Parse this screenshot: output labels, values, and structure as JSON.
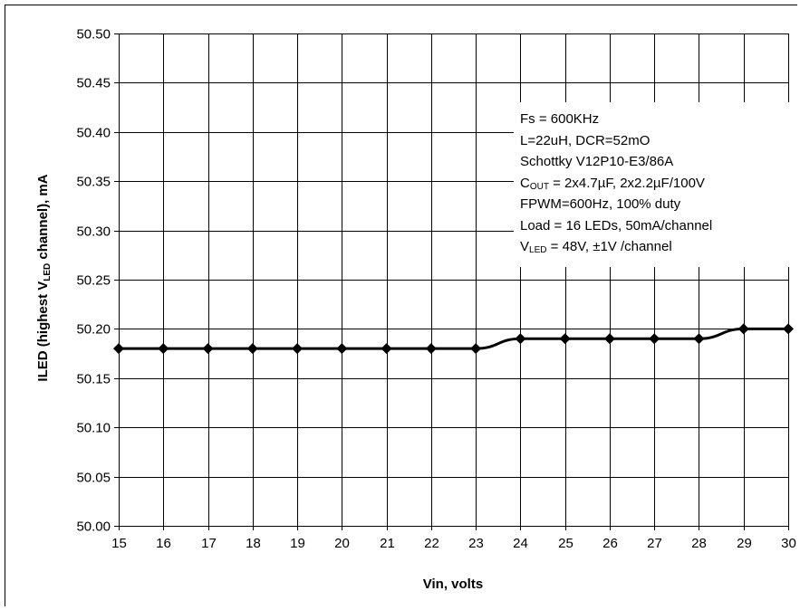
{
  "chart_data": {
    "type": "line",
    "xlabel": "Vin, volts",
    "ylabel": {
      "pre": "ILED (highest V",
      "sub": "LED",
      "post": " channel), mA"
    },
    "x": [
      15,
      16,
      17,
      18,
      19,
      20,
      21,
      22,
      23,
      24,
      25,
      26,
      27,
      28,
      29,
      30
    ],
    "series": [
      {
        "values": [
          50.18,
          50.18,
          50.18,
          50.18,
          50.18,
          50.18,
          50.18,
          50.18,
          50.18,
          50.19,
          50.19,
          50.19,
          50.19,
          50.19,
          50.2,
          50.2
        ]
      }
    ],
    "xlim": [
      15,
      30
    ],
    "ylim": [
      50.0,
      50.5
    ],
    "xticks": [
      "15",
      "16",
      "17",
      "18",
      "19",
      "20",
      "21",
      "22",
      "23",
      "24",
      "25",
      "26",
      "27",
      "28",
      "29",
      "30"
    ],
    "yticks": [
      "50.00",
      "50.05",
      "50.10",
      "50.15",
      "50.20",
      "50.25",
      "50.30",
      "50.35",
      "50.40",
      "50.45",
      "50.50"
    ],
    "grid": true,
    "annotation_lines": [
      {
        "id": "fs",
        "text": "Fs = 600KHz"
      },
      {
        "id": "l",
        "text": "L=22uH, DCR=52mO"
      },
      {
        "id": "diode",
        "text": "Schottky V12P10-E3/86A"
      },
      {
        "id": "cout",
        "pre": "C",
        "sub": "OUT",
        "post": " = 2x4.7µF, 2x2.2µF/100V"
      },
      {
        "id": "fpwm",
        "text": "FPWM=600Hz, 100% duty"
      },
      {
        "id": "load",
        "text": "Load = 16 LEDs, 50mA/channel"
      },
      {
        "id": "vled",
        "pre": "V",
        "sub": "LED",
        "post": " = 48V, ±1V /channel"
      }
    ],
    "colors": {
      "line": "#000000",
      "grid": "#000000",
      "background": "#ffffff"
    }
  }
}
